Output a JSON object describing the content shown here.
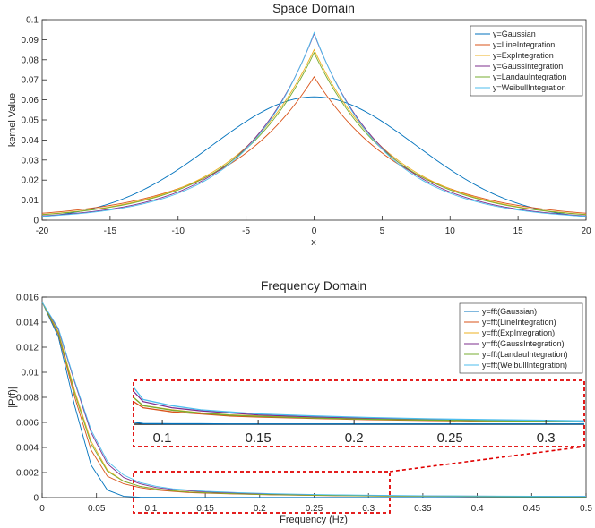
{
  "chart_data": [
    {
      "type": "line",
      "title": "Space Domain",
      "xlabel": "x",
      "ylabel": "kernel Value",
      "xlim": [
        -20,
        20
      ],
      "ylim": [
        0,
        0.1
      ],
      "xticks": [
        -20,
        -15,
        -10,
        -5,
        0,
        5,
        10,
        15,
        20
      ],
      "yticks": [
        0,
        0.01,
        0.02,
        0.03,
        0.04,
        0.05,
        0.06,
        0.07,
        0.08,
        0.09,
        0.1
      ],
      "legend_position": "top-right",
      "series": [
        {
          "name": "y=Gaussian",
          "color": "#0072BD",
          "peak": 0.0615,
          "shape": "gauss",
          "width": 7.5
        },
        {
          "name": "y=LineIntegration",
          "color": "#D95319",
          "peak": 0.0715,
          "shape": "exp",
          "width": 6.6
        },
        {
          "name": "y=ExpIntegration",
          "color": "#EDB120",
          "peak": 0.085,
          "shape": "exp",
          "width": 5.9
        },
        {
          "name": "y=GaussIntegration",
          "color": "#7E2F8E",
          "peak": 0.093,
          "shape": "exp",
          "width": 5.3
        },
        {
          "name": "y=LandauIntegration",
          "color": "#77AC30",
          "peak": 0.0835,
          "shape": "exp",
          "width": 5.85
        },
        {
          "name": "y=WeibullIntegration",
          "color": "#4DBEEE",
          "peak": 0.0935,
          "shape": "exp",
          "width": 5.15
        }
      ]
    },
    {
      "type": "line",
      "title": "Frequency Domain",
      "xlabel": "Frequency (Hz)",
      "ylabel": "|P(f)|",
      "xlim": [
        0,
        0.5
      ],
      "ylim": [
        0,
        0.016
      ],
      "xticks": [
        0,
        0.05,
        0.1,
        0.15,
        0.2,
        0.25,
        0.3,
        0.35,
        0.4,
        0.45,
        0.5
      ],
      "yticks": [
        0,
        0.002,
        0.004,
        0.006,
        0.008,
        0.01,
        0.012,
        0.014,
        0.016
      ],
      "legend_position": "top-right",
      "x": [
        0,
        0.015,
        0.03,
        0.045,
        0.06,
        0.075,
        0.09,
        0.105,
        0.12,
        0.135,
        0.15,
        0.18,
        0.21,
        0.24,
        0.27,
        0.3,
        0.33,
        0.36,
        0.39,
        0.42,
        0.45,
        0.48,
        0.5
      ],
      "series": [
        {
          "name": "y=fft(Gaussian)",
          "color": "#0072BD",
          "values": [
            0.0156,
            0.0128,
            0.0073,
            0.0026,
            0.0006,
            0.0001,
            3e-05,
            2e-05,
            2e-05,
            1e-05,
            1e-05,
            1e-05,
            1e-05,
            1e-05,
            1e-05,
            1e-05,
            1e-05,
            1e-05,
            1e-05,
            1e-05,
            1e-05,
            1e-05,
            1e-05
          ]
        },
        {
          "name": "y=fft(LineIntegration)",
          "color": "#D95319",
          "values": [
            0.0156,
            0.013,
            0.008,
            0.0038,
            0.0017,
            0.0011,
            0.0008,
            0.0006,
            0.0005,
            0.0004,
            0.00035,
            0.00028,
            0.00022,
            0.00018,
            0.00015,
            0.00013,
            0.00011,
            0.0001,
            9e-05,
            8e-05,
            7e-05,
            6e-05,
            6e-05
          ]
        },
        {
          "name": "y=fft(ExpIntegration)",
          "color": "#EDB120",
          "values": [
            0.0156,
            0.0132,
            0.0085,
            0.0045,
            0.0022,
            0.0013,
            0.0009,
            0.0007,
            0.00055,
            0.00045,
            0.0004,
            0.0003,
            0.00024,
            0.0002,
            0.00017,
            0.00014,
            0.00012,
            0.00011,
            0.0001,
            9e-05,
            8e-05,
            7e-05,
            7e-05
          ]
        },
        {
          "name": "y=fft(GaussIntegration)",
          "color": "#7E2F8E",
          "values": [
            0.0156,
            0.0134,
            0.0092,
            0.0052,
            0.0027,
            0.0016,
            0.0011,
            0.0008,
            0.00065,
            0.00055,
            0.00045,
            0.00035,
            0.00028,
            0.00023,
            0.0002,
            0.00017,
            0.00015,
            0.00013,
            0.00012,
            0.00011,
            0.0001,
            9e-05,
            9e-05
          ]
        },
        {
          "name": "y=fft(LandauIntegration)",
          "color": "#77AC30",
          "values": [
            0.0156,
            0.0131,
            0.0083,
            0.0043,
            0.0021,
            0.0013,
            0.0009,
            0.00068,
            0.00054,
            0.00044,
            0.00038,
            0.0003,
            0.00024,
            0.0002,
            0.00017,
            0.00014,
            0.00012,
            0.00011,
            0.0001,
            9e-05,
            8e-05,
            7e-05,
            7e-05
          ]
        },
        {
          "name": "y=fft(WeibullIntegration)",
          "color": "#4DBEEE",
          "values": [
            0.0156,
            0.0135,
            0.0093,
            0.0054,
            0.0029,
            0.0018,
            0.0012,
            0.0009,
            0.0007,
            0.0006,
            0.0005,
            0.0004,
            0.00032,
            0.00026,
            0.00022,
            0.00019,
            0.00016,
            0.00014,
            0.00013,
            0.00012,
            0.00011,
            0.0001,
            0.0001
          ]
        }
      ],
      "zoom_inset": {
        "xlim": [
          0.085,
          0.32
        ],
        "ylim": [
          0,
          0.002
        ],
        "xticks": [
          "0.1",
          "0.15",
          "0.2",
          "0.25",
          "0.3"
        ],
        "box_color": "#E00000"
      }
    }
  ]
}
